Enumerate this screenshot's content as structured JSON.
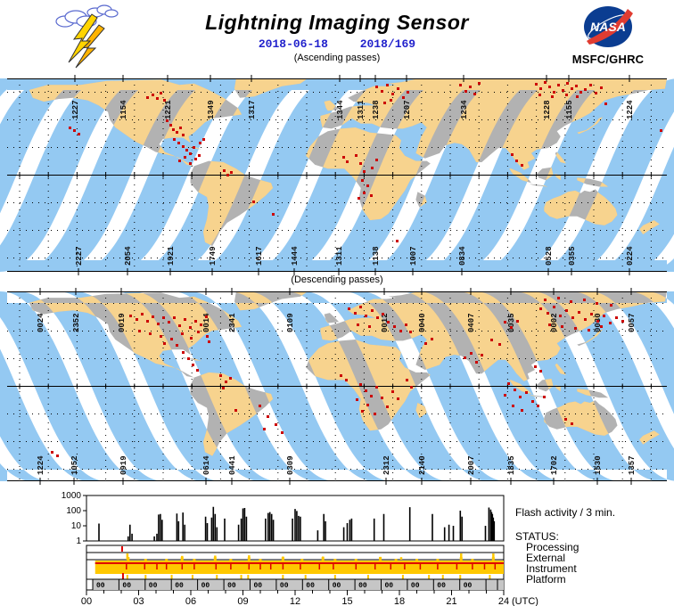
{
  "header": {
    "title": "Lightning Imaging Sensor",
    "date_iso": "2018-06-18",
    "date_doy": "2018/169",
    "org": "MSFC/GHRC",
    "nasa_text": "NASA"
  },
  "captions": {
    "ascending": "(Ascending passes)",
    "descending": "(Descending passes)"
  },
  "colors": {
    "swath_ocean": "#94C9F2",
    "swath_land": "#F7D38E",
    "land": "#B2B2B2",
    "lightning_red": "#CC0000",
    "status_yellow": "#FFC800",
    "status_red": "#E00000",
    "platform_gray": "#C6C6C6",
    "date_blue": "#2222CC",
    "nasa_blue": "#0B3D91",
    "nasa_red": "#E03C31"
  },
  "chart_data": [
    {
      "type": "map-swath",
      "name": "ascending-passes",
      "top_labels": [
        [
          "1227",
          76
        ],
        [
          "1154",
          130
        ],
        [
          "1221",
          180
        ],
        [
          "1349",
          228
        ],
        [
          "1317",
          274
        ],
        [
          "1344",
          373
        ],
        [
          "1311",
          396
        ],
        [
          "1238",
          413
        ],
        [
          "1207",
          448
        ],
        [
          "1234",
          512
        ],
        [
          "1228",
          605
        ],
        [
          "1155",
          630
        ],
        [
          "1224",
          698
        ]
      ],
      "bottom_labels": [
        [
          "2227",
          80
        ],
        [
          "2054",
          135
        ],
        [
          "1921",
          183
        ],
        [
          "1749",
          230
        ],
        [
          "1617",
          282
        ],
        [
          "1444",
          322
        ],
        [
          "1311",
          372
        ],
        [
          "1138",
          413
        ],
        [
          "1007",
          455
        ],
        [
          "0834",
          510
        ],
        [
          "0528",
          607
        ],
        [
          "0355",
          633
        ],
        [
          "0224",
          698
        ]
      ],
      "flash_dots": [
        [
          163,
          18
        ],
        [
          168,
          22
        ],
        [
          172,
          16
        ],
        [
          176,
          24
        ],
        [
          157,
          21
        ],
        [
          179,
          47
        ],
        [
          183,
          52
        ],
        [
          186,
          57
        ],
        [
          190,
          60
        ],
        [
          194,
          55
        ],
        [
          197,
          63
        ],
        [
          187,
          68
        ],
        [
          192,
          72
        ],
        [
          197,
          76
        ],
        [
          201,
          80
        ],
        [
          205,
          84
        ],
        [
          209,
          77
        ],
        [
          199,
          88
        ],
        [
          193,
          92
        ],
        [
          205,
          95
        ],
        [
          211,
          90
        ],
        [
          215,
          86
        ],
        [
          75,
          58
        ],
        [
          80,
          62
        ],
        [
          70,
          55
        ],
        [
          216,
          72
        ],
        [
          220,
          68
        ],
        [
          243,
          103
        ],
        [
          247,
          108
        ],
        [
          251,
          105
        ],
        [
          276,
          138
        ],
        [
          298,
          152
        ],
        [
          377,
          88
        ],
        [
          381,
          93
        ],
        [
          391,
          86
        ],
        [
          396,
          95
        ],
        [
          400,
          104
        ],
        [
          398,
          114
        ],
        [
          404,
          120
        ],
        [
          409,
          100
        ],
        [
          414,
          91
        ],
        [
          400,
          128
        ],
        [
          394,
          134
        ],
        [
          408,
          131
        ],
        [
          437,
          182
        ],
        [
          414,
          9
        ],
        [
          420,
          14
        ],
        [
          426,
          7
        ],
        [
          432,
          17
        ],
        [
          438,
          11
        ],
        [
          444,
          21
        ],
        [
          430,
          24
        ],
        [
          423,
          27
        ],
        [
          449,
          15
        ],
        [
          508,
          7
        ],
        [
          514,
          14
        ],
        [
          519,
          9
        ],
        [
          524,
          17
        ],
        [
          529,
          5
        ],
        [
          593,
          6
        ],
        [
          598,
          11
        ],
        [
          603,
          4
        ],
        [
          608,
          9
        ],
        [
          613,
          15
        ],
        [
          618,
          7
        ],
        [
          623,
          13
        ],
        [
          628,
          5
        ],
        [
          633,
          11
        ],
        [
          638,
          8
        ],
        [
          643,
          15
        ],
        [
          597,
          18
        ],
        [
          611,
          20
        ],
        [
          627,
          18
        ],
        [
          639,
          20
        ],
        [
          648,
          12
        ],
        [
          654,
          7
        ],
        [
          660,
          16
        ],
        [
          666,
          10
        ],
        [
          566,
          85
        ],
        [
          571,
          92
        ],
        [
          577,
          97
        ],
        [
          671,
          28
        ],
        [
          733,
          58
        ]
      ]
    },
    {
      "type": "map-swath",
      "name": "descending-passes",
      "top_labels": [
        [
          "0024",
          37
        ],
        [
          "2352",
          77
        ],
        [
          "0019",
          128
        ],
        [
          "0014",
          223
        ],
        [
          "2341",
          252
        ],
        [
          "0109",
          317
        ],
        [
          "0012",
          423
        ],
        [
          "0040",
          465
        ],
        [
          "0407",
          520
        ],
        [
          "0035",
          565
        ],
        [
          "0002",
          613
        ],
        [
          "0030",
          662
        ],
        [
          "0057",
          700
        ]
      ],
      "bottom_labels": [
        [
          "1224",
          37
        ],
        [
          "1052",
          75
        ],
        [
          "0919",
          130
        ],
        [
          "0614",
          223
        ],
        [
          "0441",
          252
        ],
        [
          "0309",
          317
        ],
        [
          "2312",
          425
        ],
        [
          "2140",
          465
        ],
        [
          "2007",
          520
        ],
        [
          "1835",
          565
        ],
        [
          "1702",
          613
        ],
        [
          "1530",
          662
        ],
        [
          "1357",
          700
        ]
      ],
      "flash_dots": [
        [
          138,
          27
        ],
        [
          145,
          31
        ],
        [
          151,
          25
        ],
        [
          157,
          33
        ],
        [
          163,
          28
        ],
        [
          169,
          36
        ],
        [
          175,
          29
        ],
        [
          181,
          34
        ],
        [
          187,
          29
        ],
        [
          193,
          38
        ],
        [
          199,
          31
        ],
        [
          205,
          40
        ],
        [
          211,
          33
        ],
        [
          217,
          37
        ],
        [
          223,
          28
        ],
        [
          148,
          44
        ],
        [
          160,
          47
        ],
        [
          172,
          50
        ],
        [
          184,
          53
        ],
        [
          196,
          47
        ],
        [
          206,
          52
        ],
        [
          214,
          45
        ],
        [
          224,
          50
        ],
        [
          176,
          58
        ],
        [
          190,
          60
        ],
        [
          197,
          68
        ],
        [
          203,
          75
        ],
        [
          208,
          82
        ],
        [
          213,
          88
        ],
        [
          226,
          56
        ],
        [
          239,
          94
        ],
        [
          245,
          101
        ],
        [
          250,
          97
        ],
        [
          242,
          108
        ],
        [
          283,
          128
        ],
        [
          292,
          140
        ],
        [
          301,
          149
        ],
        [
          288,
          154
        ],
        [
          308,
          158
        ],
        [
          256,
          133
        ],
        [
          50,
          180
        ],
        [
          56,
          184
        ],
        [
          383,
          19
        ],
        [
          390,
          24
        ],
        [
          396,
          17
        ],
        [
          402,
          27
        ],
        [
          409,
          21
        ],
        [
          415,
          29
        ],
        [
          421,
          25
        ],
        [
          427,
          34
        ],
        [
          393,
          37
        ],
        [
          406,
          39
        ],
        [
          434,
          39
        ],
        [
          441,
          44
        ],
        [
          447,
          37
        ],
        [
          452,
          45
        ],
        [
          374,
          94
        ],
        [
          380,
          99
        ],
        [
          396,
          104
        ],
        [
          402,
          111
        ],
        [
          408,
          117
        ],
        [
          414,
          107
        ],
        [
          420,
          119
        ],
        [
          404,
          127
        ],
        [
          398,
          134
        ],
        [
          412,
          137
        ],
        [
          426,
          129
        ],
        [
          392,
          121
        ],
        [
          432,
          112
        ],
        [
          438,
          120
        ],
        [
          448,
          99
        ],
        [
          453,
          107
        ],
        [
          469,
          58
        ],
        [
          476,
          53
        ],
        [
          513,
          74
        ],
        [
          520,
          69
        ],
        [
          526,
          79
        ],
        [
          532,
          71
        ],
        [
          543,
          54
        ],
        [
          552,
          59
        ],
        [
          558,
          34
        ],
        [
          565,
          40
        ],
        [
          572,
          33
        ],
        [
          598,
          19
        ],
        [
          606,
          24
        ],
        [
          613,
          17
        ],
        [
          620,
          27
        ],
        [
          627,
          21
        ],
        [
          634,
          29
        ],
        [
          641,
          23
        ],
        [
          648,
          31
        ],
        [
          655,
          25
        ],
        [
          662,
          33
        ],
        [
          669,
          27
        ],
        [
          676,
          35
        ],
        [
          683,
          29
        ],
        [
          690,
          33
        ],
        [
          608,
          37
        ],
        [
          622,
          39
        ],
        [
          637,
          41
        ],
        [
          652,
          43
        ],
        [
          666,
          39
        ],
        [
          603,
          9
        ],
        [
          618,
          7
        ],
        [
          632,
          11
        ],
        [
          647,
          9
        ],
        [
          661,
          13
        ],
        [
          677,
          15
        ],
        [
          562,
          103
        ],
        [
          569,
          110
        ],
        [
          575,
          118
        ],
        [
          582,
          113
        ],
        [
          589,
          123
        ],
        [
          567,
          128
        ],
        [
          577,
          133
        ],
        [
          558,
          116
        ],
        [
          595,
          128
        ],
        [
          602,
          118
        ],
        [
          592,
          84
        ],
        [
          598,
          89
        ],
        [
          626,
          143
        ],
        [
          633,
          148
        ]
      ]
    },
    {
      "type": "bar",
      "name": "flash-activity",
      "title": "Flash activity / 3 min.",
      "y_scale": "log",
      "ylim": [
        1,
        1000
      ],
      "y_ticks": [
        "1000",
        "100",
        "10",
        "1"
      ],
      "xlim_hours": [
        0,
        24
      ],
      "x_ticks": [
        "00",
        "03",
        "06",
        "09",
        "12",
        "15",
        "18",
        "21",
        "24"
      ],
      "x_unit_label": "(UTC)",
      "spikes": [
        [
          0.72,
          14
        ],
        [
          2.4,
          2
        ],
        [
          2.5,
          12
        ],
        [
          2.62,
          3
        ],
        [
          3.9,
          2
        ],
        [
          4.05,
          3
        ],
        [
          4.15,
          55
        ],
        [
          4.25,
          60
        ],
        [
          4.35,
          25
        ],
        [
          5.2,
          65
        ],
        [
          5.3,
          20
        ],
        [
          5.55,
          75
        ],
        [
          5.65,
          12
        ],
        [
          6.85,
          40
        ],
        [
          6.95,
          15
        ],
        [
          7.2,
          35
        ],
        [
          7.3,
          180
        ],
        [
          7.4,
          60
        ],
        [
          7.5,
          8
        ],
        [
          7.95,
          30
        ],
        [
          8.75,
          12
        ],
        [
          8.9,
          30
        ],
        [
          9.0,
          140
        ],
        [
          9.1,
          150
        ],
        [
          9.2,
          40
        ],
        [
          10.3,
          30
        ],
        [
          10.45,
          70
        ],
        [
          10.55,
          80
        ],
        [
          10.65,
          60
        ],
        [
          10.75,
          25
        ],
        [
          11.85,
          30
        ],
        [
          12.0,
          130
        ],
        [
          12.1,
          95
        ],
        [
          12.2,
          45
        ],
        [
          12.3,
          40
        ],
        [
          13.3,
          5
        ],
        [
          13.65,
          60
        ],
        [
          13.75,
          20
        ],
        [
          14.8,
          8
        ],
        [
          15.0,
          15
        ],
        [
          15.15,
          25
        ],
        [
          15.25,
          30
        ],
        [
          16.55,
          30
        ],
        [
          17.1,
          60
        ],
        [
          18.6,
          170
        ],
        [
          19.9,
          60
        ],
        [
          20.6,
          8
        ],
        [
          20.85,
          12
        ],
        [
          21.1,
          10
        ],
        [
          21.5,
          100
        ],
        [
          21.6,
          40
        ],
        [
          22.95,
          10
        ],
        [
          23.15,
          160
        ],
        [
          23.25,
          120
        ],
        [
          23.3,
          80
        ],
        [
          23.35,
          60
        ],
        [
          23.4,
          35
        ],
        [
          23.45,
          20
        ]
      ],
      "status": {
        "heading": "STATUS:",
        "rows": [
          "Processing",
          "External",
          "Instrument",
          "Platform"
        ],
        "processing_marks_h": [
          2.05
        ],
        "external_marks": [
          [
            2.35,
            1
          ],
          [
            5.5,
            0.6
          ],
          [
            7.4,
            0.65
          ],
          [
            9.35,
            0.7
          ],
          [
            11.3,
            0.5
          ],
          [
            13.6,
            0.5
          ],
          [
            16.9,
            0.45
          ],
          [
            18.1,
            0.4
          ],
          [
            21.55,
            1
          ],
          [
            23.4,
            1
          ]
        ],
        "instrument": {
          "band_range_h": [
            0.5,
            24
          ],
          "red_line": true,
          "red_tick_h": [
            2.3,
            3.35,
            4.05,
            4.6,
            5.5,
            6.2,
            7.45,
            8.3,
            9.35,
            10.0,
            10.6,
            11.3,
            12.3,
            13.4,
            14.2,
            15.5,
            16.6,
            17.5,
            18.3,
            19.2,
            20.2,
            21.3,
            22.2,
            22.9,
            23.5
          ],
          "bump_h": [
            2.4,
            5.5,
            7.4,
            9.35,
            11.3,
            13.6,
            16.9,
            21.55,
            23.4
          ],
          "small_bump_h": [
            3.4,
            4.6,
            6.2,
            8.3,
            10.0,
            12.4,
            14.3,
            15.5,
            17.8,
            19.0,
            20.2,
            22.2
          ]
        },
        "platform": {
          "yellow_spike_h": [
            2.35,
            3.4,
            4.9,
            6.1,
            7.5,
            8.9,
            9.3,
            11.3,
            12.6,
            14.3,
            16.2,
            18.2,
            19.7,
            20.5,
            21.5,
            23.2
          ],
          "red_mark_h": [
            2.1
          ],
          "orbit_box_label": "00",
          "orbit_box_count": 15,
          "first_box_h": 0.36,
          "box_period_h": 1.508
        }
      }
    }
  ]
}
